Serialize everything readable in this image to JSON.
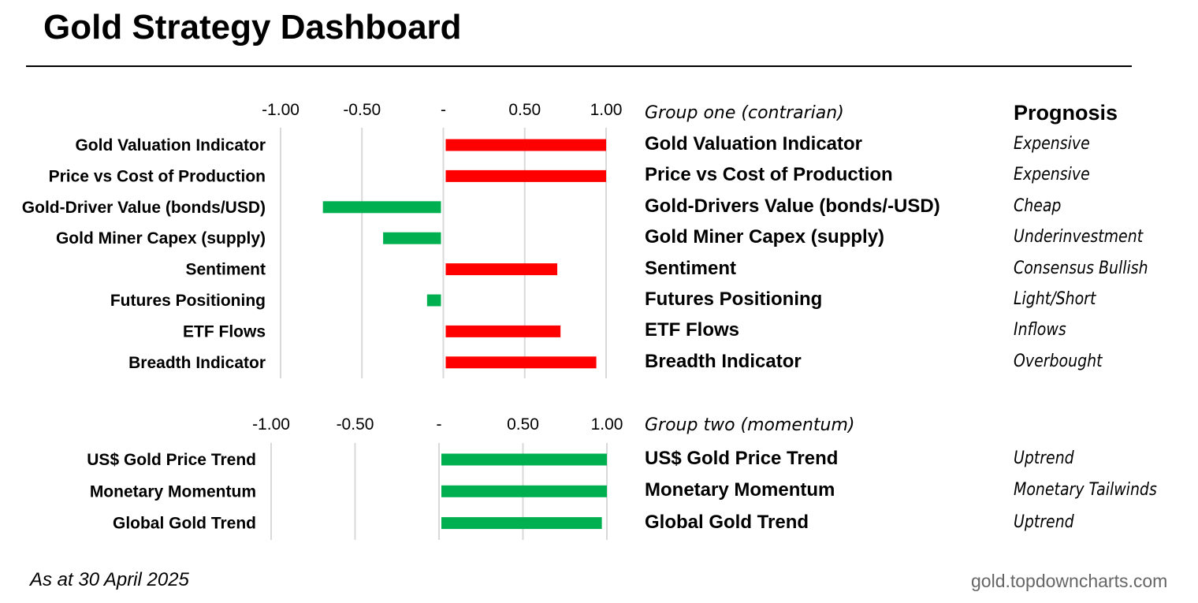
{
  "title": "Gold Strategy Dashboard",
  "prognosis_header": "Prognosis",
  "footer": {
    "as_at": "As at 30 April 2025",
    "source": "gold.topdowncharts.com"
  },
  "colors": {
    "positive_bar": "#ff0000",
    "negative_bar": "#00b050",
    "momentum_bar": "#00b050",
    "grid": "#d9d9d9"
  },
  "chart_data": [
    {
      "type": "bar",
      "orientation": "horizontal",
      "group_label": "Group one (contrarian)",
      "xlim": [
        -1.0,
        1.0
      ],
      "ticks": [
        -1.0,
        -0.5,
        0,
        0.5,
        1.0
      ],
      "tick_labels": [
        "-1.00",
        "-0.50",
        "-",
        "0.50",
        "1.00"
      ],
      "grid": true,
      "categories": [
        "Gold Valuation Indicator",
        "Price vs Cost of Production",
        "Gold-Driver Value (bonds/USD)",
        "Gold Miner Capex (supply)",
        "Sentiment",
        "Futures Positioning",
        "ETF Flows",
        "Breadth Indicator"
      ],
      "right_labels": [
        "Gold Valuation Indicator",
        "Price vs Cost of Production",
        "Gold-Drivers Value (bonds/-USD)",
        "Gold Miner Capex (supply)",
        "Sentiment",
        "Futures Positioning",
        "ETF Flows",
        "Breadth Indicator"
      ],
      "values": [
        1.0,
        1.0,
        -0.74,
        -0.37,
        0.7,
        -0.1,
        0.72,
        0.94
      ],
      "prognosis": [
        "Expensive",
        "Expensive",
        "Cheap",
        "Underinvestment",
        "Consensus Bullish",
        "Light/Short",
        "Inflows",
        "Overbought"
      ]
    },
    {
      "type": "bar",
      "orientation": "horizontal",
      "group_label": "Group two (momentum)",
      "xlim": [
        -1.0,
        1.0
      ],
      "ticks": [
        -1.0,
        -0.5,
        0,
        0.5,
        1.0
      ],
      "tick_labels": [
        "-1.00",
        "-0.50",
        "-",
        "0.50",
        "1.00"
      ],
      "grid": true,
      "categories": [
        "US$ Gold Price Trend",
        "Monetary Momentum",
        "Global Gold Trend"
      ],
      "right_labels": [
        "US$ Gold Price Trend",
        "Monetary Momentum",
        "Global Gold Trend"
      ],
      "values": [
        1.0,
        1.0,
        0.97
      ],
      "prognosis": [
        "Uptrend",
        "Monetary Tailwinds",
        "Uptrend"
      ]
    }
  ]
}
